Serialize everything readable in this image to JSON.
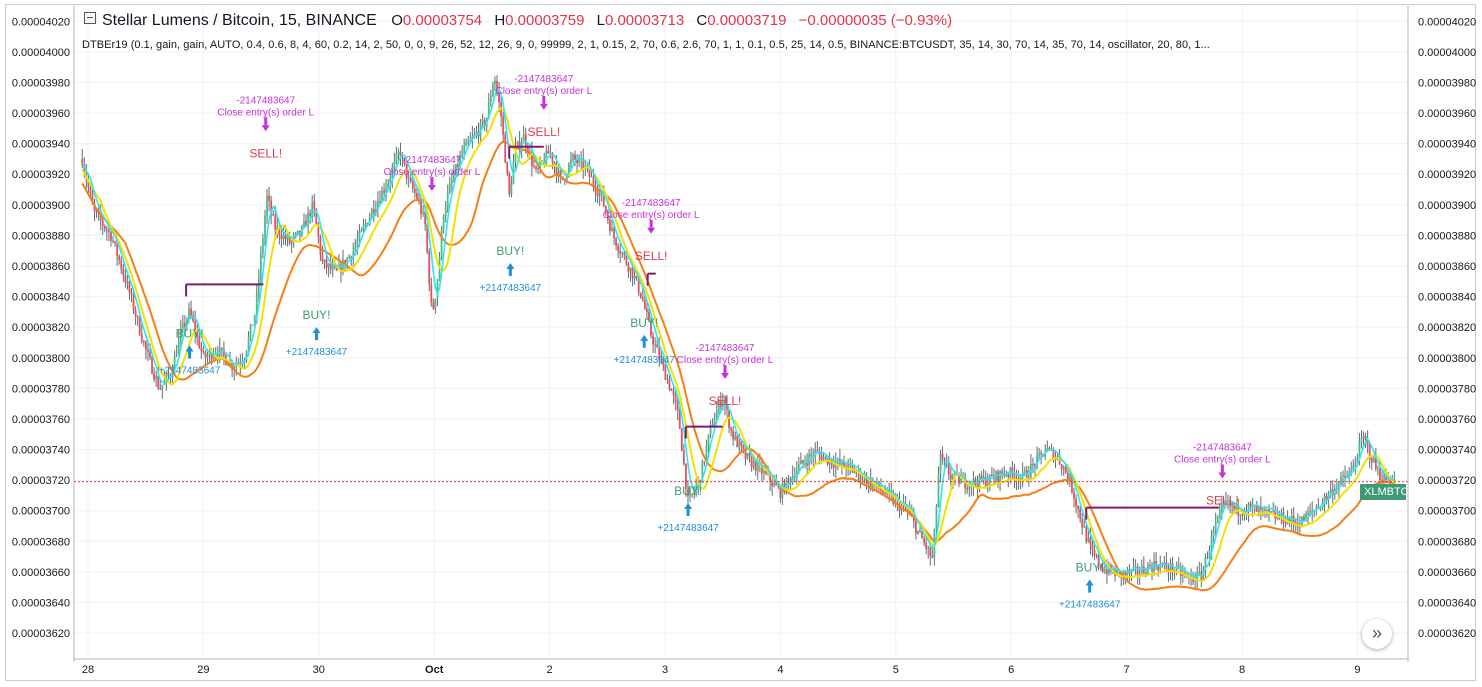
{
  "legend": {
    "title": "Stellar Lumens / Bitcoin, 15, BINANCE",
    "o_label": "O",
    "o": "0.00003754",
    "h_label": "H",
    "h": "0.00003759",
    "l_label": "L",
    "l": "0.00003713",
    "c_label": "C",
    "c": "0.00003719",
    "change": "−0.00000035 (−0.93%)"
  },
  "study": "DTBEr19 (0.1, gain, gain, AUTO, 0.4, 0.6, 8, 4, 60, 0.2, 14, 2, 50, 0, 0, 9, 26, 52, 12, 26, 9, 0, 99999, 2, 1, 0.15, 2, 70, 0.6, 2.6, 70, 1, 1, 0.1, 0.5, 25, 14, 0.5, BINANCE:BTCUSDT, 35, 14, 30, 70, 14, 35, 70, 14, oscillator, 20, 80, 1...",
  "symbol_tag": "XLMBTC",
  "goto_glyph": "»",
  "colors": {
    "up": "#53b987",
    "down": "#eb4d5c",
    "wick": "#606d77",
    "cyan": "#2ee6f0",
    "yellow": "#f2e100",
    "orange": "#f57f17",
    "purple": "#7b1b72",
    "magenta": "#c532d8",
    "sell": "#e03c4a",
    "buy": "#3d9e6d",
    "blue": "#1e8fd6",
    "grid": "#eef0f4",
    "current": "#e23b3b"
  },
  "chart_data": {
    "type": "candlestick",
    "y_ticks": [
      "0.00003620",
      "0.00003640",
      "0.00003660",
      "0.00003680",
      "0.00003700",
      "0.00003720",
      "0.00003740",
      "0.00003760",
      "0.00003780",
      "0.00003800",
      "0.00003820",
      "0.00003840",
      "0.00003860",
      "0.00003880",
      "0.00003900",
      "0.00003920",
      "0.00003940",
      "0.00003960",
      "0.00003980",
      "0.00004000",
      "0.00004020"
    ],
    "ylim": [
      3.605e-05,
      4.03e-05
    ],
    "x_ticks": [
      "28",
      "29",
      "30",
      "Oct",
      "2",
      "3",
      "4",
      "5",
      "6",
      "7",
      "8",
      "9"
    ],
    "current_price": 3.719e-05,
    "price_path": [
      [
        27.95,
        3930
      ],
      [
        28.05,
        3895
      ],
      [
        28.2,
        3880
      ],
      [
        28.35,
        3845
      ],
      [
        28.5,
        3805
      ],
      [
        28.62,
        3780
      ],
      [
        28.72,
        3790
      ],
      [
        28.8,
        3815
      ],
      [
        28.88,
        3830
      ],
      [
        29.0,
        3800
      ],
      [
        29.12,
        3805
      ],
      [
        29.25,
        3795
      ],
      [
        29.35,
        3800
      ],
      [
        29.45,
        3830
      ],
      [
        29.55,
        3905
      ],
      [
        29.62,
        3885
      ],
      [
        29.75,
        3875
      ],
      [
        29.85,
        3882
      ],
      [
        29.95,
        3900
      ],
      [
        30.03,
        3862
      ],
      [
        30.15,
        3855
      ],
      [
        30.3,
        3870
      ],
      [
        30.45,
        3895
      ],
      [
        30.6,
        3915
      ],
      [
        30.7,
        3935
      ],
      [
        30.78,
        3915
      ],
      [
        30.85,
        3905
      ],
      [
        30.92,
        3888
      ],
      [
        30.98,
        3828
      ],
      [
        31.02,
        3845
      ],
      [
        31.08,
        3895
      ],
      [
        31.15,
        3915
      ],
      [
        31.25,
        3935
      ],
      [
        31.35,
        3945
      ],
      [
        31.45,
        3955
      ],
      [
        31.52,
        3985
      ],
      [
        31.58,
        3958
      ],
      [
        31.65,
        3905
      ],
      [
        31.7,
        3935
      ],
      [
        31.78,
        3945
      ],
      [
        31.88,
        3920
      ],
      [
        32.0,
        3935
      ],
      [
        32.1,
        3915
      ],
      [
        32.2,
        3930
      ],
      [
        32.3,
        3925
      ],
      [
        32.45,
        3905
      ],
      [
        32.55,
        3880
      ],
      [
        32.65,
        3865
      ],
      [
        32.72,
        3855
      ],
      [
        32.8,
        3840
      ],
      [
        32.88,
        3815
      ],
      [
        32.95,
        3800
      ],
      [
        33.05,
        3780
      ],
      [
        33.12,
        3760
      ],
      [
        33.2,
        3705
      ],
      [
        33.3,
        3720
      ],
      [
        33.4,
        3755
      ],
      [
        33.5,
        3775
      ],
      [
        33.58,
        3750
      ],
      [
        33.7,
        3735
      ],
      [
        33.85,
        3725
      ],
      [
        34.0,
        3712
      ],
      [
        34.15,
        3728
      ],
      [
        34.3,
        3738
      ],
      [
        34.45,
        3732
      ],
      [
        34.6,
        3728
      ],
      [
        34.75,
        3720
      ],
      [
        34.9,
        3712
      ],
      [
        35.0,
        3705
      ],
      [
        35.1,
        3700
      ],
      [
        35.2,
        3685
      ],
      [
        35.32,
        3668
      ],
      [
        35.38,
        3735
      ],
      [
        35.48,
        3722
      ],
      [
        35.62,
        3718
      ],
      [
        35.8,
        3720
      ],
      [
        35.95,
        3725
      ],
      [
        36.1,
        3722
      ],
      [
        36.2,
        3730
      ],
      [
        36.3,
        3740
      ],
      [
        36.4,
        3735
      ],
      [
        36.5,
        3722
      ],
      [
        36.62,
        3690
      ],
      [
        36.7,
        3672
      ],
      [
        36.8,
        3662
      ],
      [
        36.95,
        3658
      ],
      [
        37.1,
        3660
      ],
      [
        37.25,
        3665
      ],
      [
        37.4,
        3662
      ],
      [
        37.55,
        3655
      ],
      [
        37.65,
        3658
      ],
      [
        37.75,
        3685
      ],
      [
        37.85,
        3705
      ],
      [
        37.95,
        3700
      ],
      [
        38.05,
        3702
      ],
      [
        38.2,
        3698
      ],
      [
        38.35,
        3695
      ],
      [
        38.5,
        3692
      ],
      [
        38.65,
        3702
      ],
      [
        38.8,
        3715
      ],
      [
        38.95,
        3725
      ],
      [
        39.05,
        3748
      ],
      [
        39.12,
        3735
      ],
      [
        39.2,
        3722
      ],
      [
        39.32,
        3719
      ]
    ],
    "lines": {
      "purple_steps": [
        [
          [
            28.85,
            3848
          ],
          [
            29.52,
            3848
          ]
        ],
        [
          [
            31.65,
            3938
          ],
          [
            31.95,
            3938
          ]
        ],
        [
          [
            32.85,
            3855
          ],
          [
            32.92,
            3855
          ]
        ],
        [
          [
            33.18,
            3755
          ],
          [
            33.5,
            3755
          ]
        ],
        [
          [
            36.65,
            3702
          ],
          [
            37.8,
            3702
          ]
        ]
      ]
    },
    "annotations": [
      {
        "kind": "close",
        "day": 29.54,
        "price": 3952,
        "num": "-2147483647",
        "text": "Close entry(s) order L",
        "sell": "SELL!"
      },
      {
        "kind": "close",
        "day": 30.98,
        "price": 3913,
        "num": "-2147483647",
        "text": "Close entry(s) order L",
        "sell": ""
      },
      {
        "kind": "close",
        "day": 31.95,
        "price": 3966,
        "num": "-2147483647",
        "text": "Close entry(s) order L",
        "sell": "SELL!"
      },
      {
        "kind": "close",
        "day": 32.88,
        "price": 3885,
        "num": "-2147483647",
        "text": "Close entry(s) order L",
        "sell": "SELL!"
      },
      {
        "kind": "close",
        "day": 33.52,
        "price": 3790,
        "num": "-2147483647",
        "text": "Close entry(s) order L",
        "sell": "SELL!"
      },
      {
        "kind": "close",
        "day": 37.83,
        "price": 3725,
        "num": "-2147483647",
        "text": "Close entry(s) order L",
        "sell": "SELL!"
      },
      {
        "kind": "buy",
        "day": 28.88,
        "price": 3808,
        "num": "+2147483647",
        "buy": "BUY!"
      },
      {
        "kind": "buy",
        "day": 29.98,
        "price": 3820,
        "num": "+2147483647",
        "buy": "BUY!"
      },
      {
        "kind": "buy",
        "day": 31.66,
        "price": 3862,
        "num": "+2147483647",
        "buy": "BUY!"
      },
      {
        "kind": "buy",
        "day": 32.82,
        "price": 3815,
        "num": "+2147483647",
        "buy": "BUY!"
      },
      {
        "kind": "buy",
        "day": 33.2,
        "price": 3705,
        "num": "+2147483647",
        "buy": "BUY!"
      },
      {
        "kind": "buy",
        "day": 36.68,
        "price": 3655,
        "num": "+2147483647",
        "buy": "BUY!"
      }
    ],
    "grid": true,
    "legend": "top-left"
  }
}
